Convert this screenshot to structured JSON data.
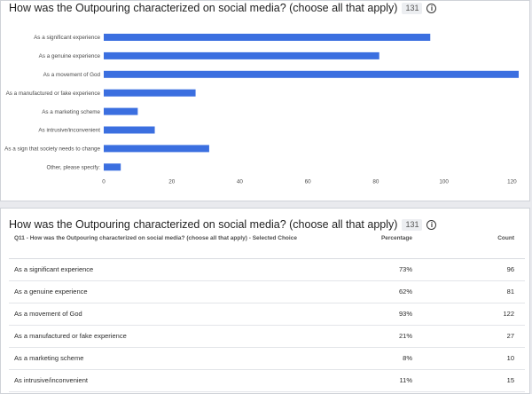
{
  "chart_card": {
    "title": "How was the Outpouring characterized on social media? (choose all that apply)",
    "badge": "131"
  },
  "table_card": {
    "title": "How was the Outpouring characterized on social media? (choose all that apply)",
    "badge": "131",
    "headers": {
      "choice": "Q11 - How was the Outpouring characterized on social media? (choose all that apply) - Selected Choice",
      "percentage": "Percentage",
      "count": "Count"
    },
    "rows": [
      {
        "choice": "As a significant experience",
        "percentage": "73%",
        "count": "96"
      },
      {
        "choice": "As a genuine experience",
        "percentage": "62%",
        "count": "81"
      },
      {
        "choice": "As a movement of God",
        "percentage": "93%",
        "count": "122"
      },
      {
        "choice": "As a manufactured or fake experience",
        "percentage": "21%",
        "count": "27"
      },
      {
        "choice": "As a marketing scheme",
        "percentage": "8%",
        "count": "10"
      },
      {
        "choice": "As intrusive/inconvenient",
        "percentage": "11%",
        "count": "15"
      }
    ]
  },
  "icons": {
    "info": "info-circle-icon"
  },
  "colors": {
    "bar": "#3b6fe0"
  },
  "chart_data": {
    "type": "bar",
    "orientation": "horizontal",
    "categories": [
      "As a significant experience",
      "As a genuine experience",
      "As a movement of God",
      "As a manufactured or fake experience",
      "As a marketing scheme",
      "As intrusive/inconvenient",
      "As a sign that society needs to change",
      "Other, please specify:"
    ],
    "values": [
      96,
      81,
      122,
      27,
      10,
      15,
      31,
      5
    ],
    "xlim": [
      0,
      122
    ],
    "xticks": [
      0,
      20,
      40,
      60,
      80,
      100,
      120
    ],
    "grid": false
  }
}
